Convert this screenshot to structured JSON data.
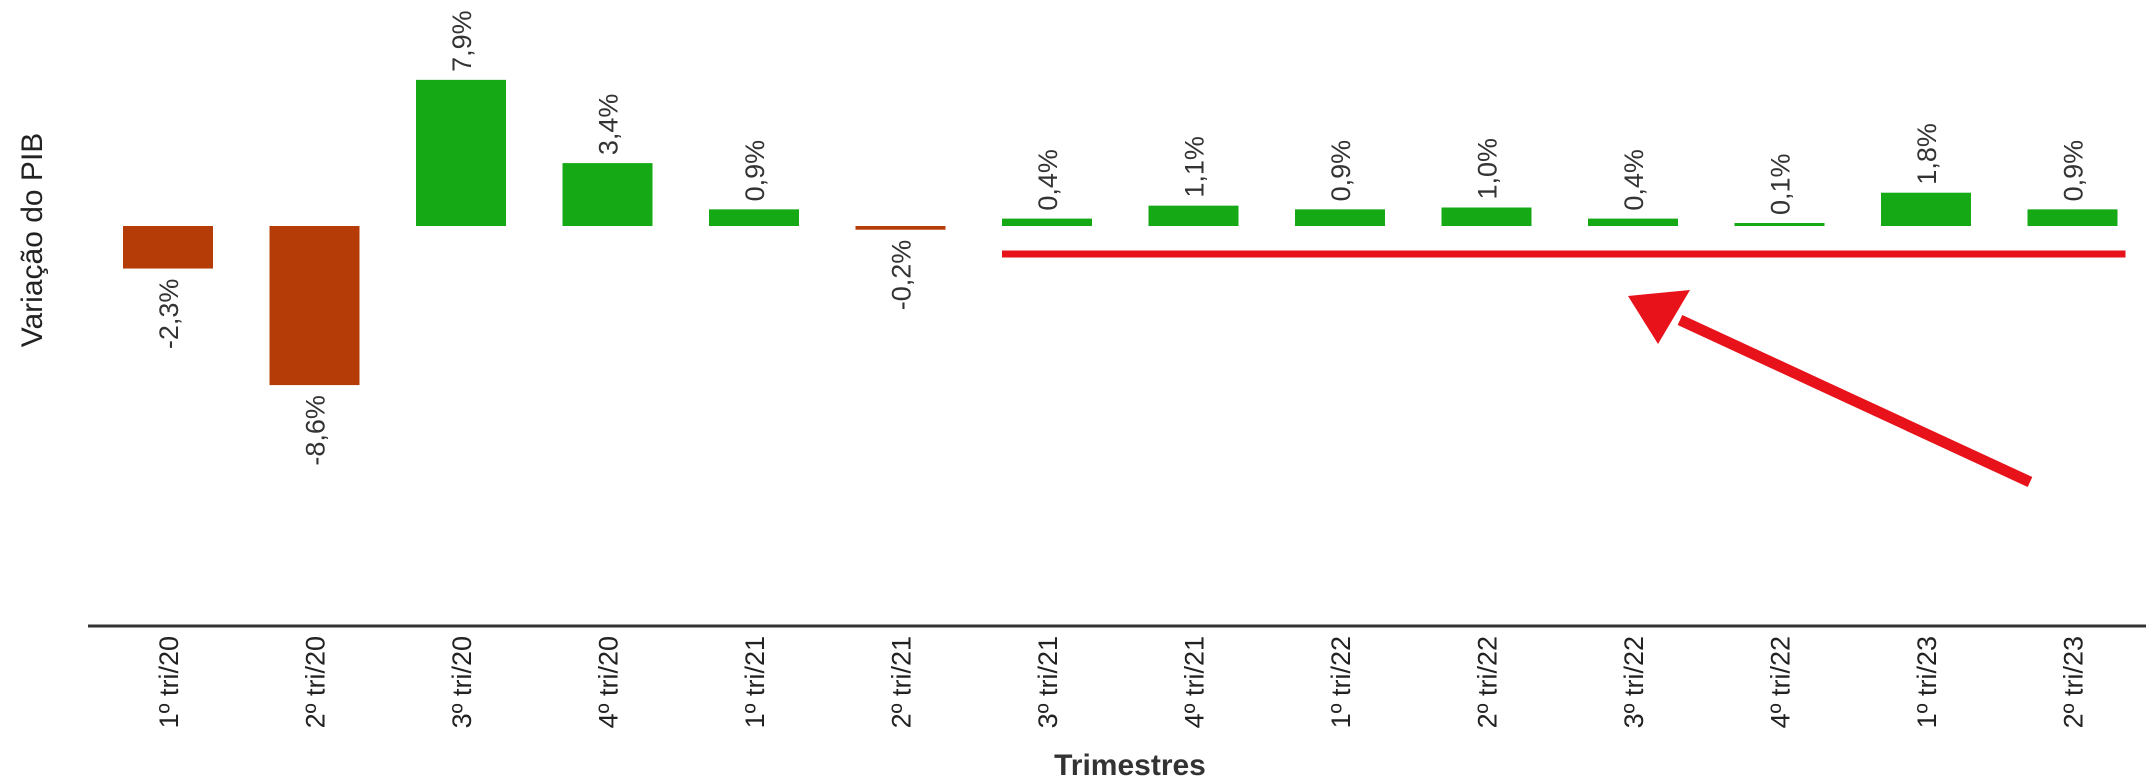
{
  "chart_data": {
    "type": "bar",
    "title": "",
    "xlabel": "Trimestres",
    "ylabel": "Variação do PIB",
    "ylim": [
      -20,
      10
    ],
    "categories": [
      "1º tri/20",
      "2º tri/20",
      "3º tri/20",
      "4º tri/20",
      "1º tri/21",
      "2º tri/21",
      "3º tri/21",
      "4º tri/21",
      "1º tri/22",
      "2º tri/22",
      "3º tri/22",
      "4º tri/22",
      "1º tri/23",
      "2º tri/23"
    ],
    "values": [
      -2.3,
      -8.6,
      7.9,
      3.4,
      0.9,
      -0.2,
      0.4,
      1.1,
      0.9,
      1.0,
      0.4,
      0.1,
      1.8,
      0.9
    ],
    "data_labels": [
      "-2,3%",
      "-8,6%",
      "7,9%",
      "3,4%",
      "0,9%",
      "-0,2%",
      "0,4%",
      "1,1%",
      "0,9%",
      "1,0%",
      "0,4%",
      "0,1%",
      "1,8%",
      "0,9%"
    ],
    "colors": {
      "positive": "#16a916",
      "negative": "#b53c06",
      "annotation": "#e8121a"
    },
    "annotation": {
      "type": "horizontal line with arrow",
      "from_category": "3º tri/21",
      "to_category": "2º tri/23"
    }
  }
}
